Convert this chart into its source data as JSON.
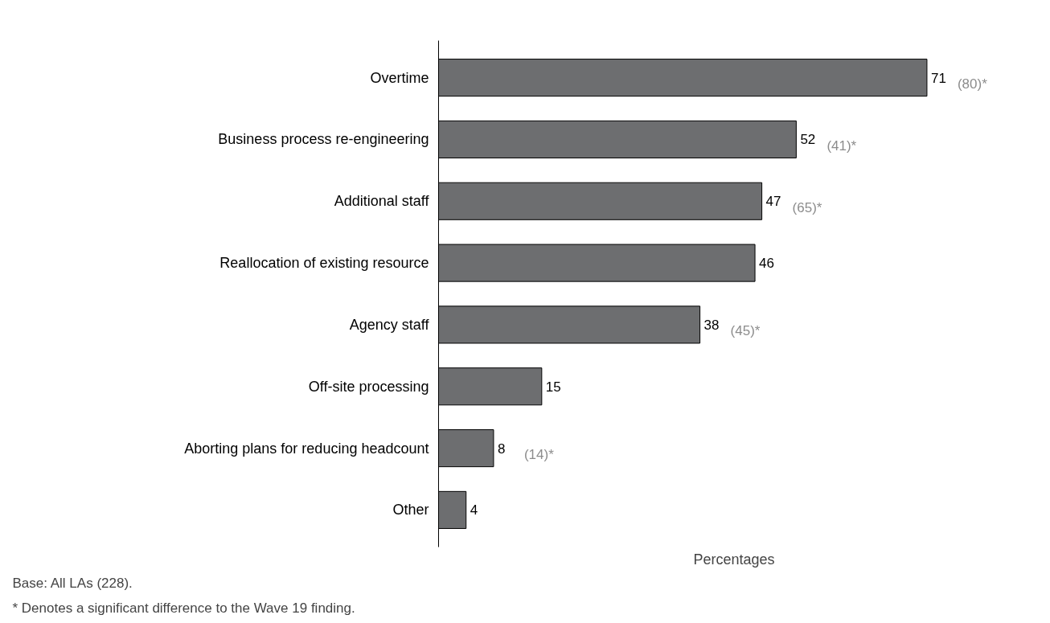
{
  "chart_data": {
    "type": "bar",
    "orientation": "horizontal",
    "categories": [
      "Overtime",
      "Business process re-engineering",
      "Additional staff",
      "Reallocation of existing resource",
      "Agency staff",
      "Off-site processing",
      "Aborting plans for reducing headcount",
      "Other"
    ],
    "values": [
      71,
      52,
      47,
      46,
      38,
      15,
      8,
      4
    ],
    "color": "#6d6e70",
    "data_labels": true,
    "tick_labels": "y",
    "grid": false,
    "xlabel": "Percentages",
    "annotations": [
      {
        "text": "(80)*",
        "x": 71,
        "y": "Overtime"
      },
      {
        "text": "(41)*",
        "x": 52,
        "y": "Business process re-engineering"
      },
      {
        "text": "(65)*",
        "x": 47,
        "y": "Additional staff"
      },
      {
        "text": "(45)*",
        "x": 38,
        "y": "Agency staff"
      },
      {
        "text": "(14)*",
        "x": 8,
        "y": "Aborting plans for reducing headcount"
      },
      "Base: All LAs (228).",
      "* Denotes a significant difference to the Wave 19 finding."
    ]
  }
}
